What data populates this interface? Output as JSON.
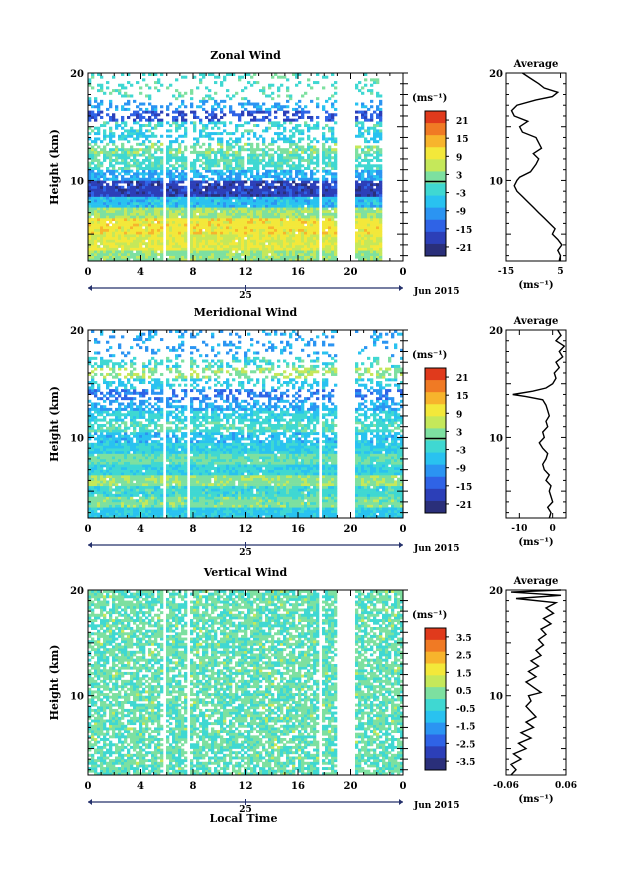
{
  "chart_data": [
    {
      "type": "heatmap",
      "title": "Zonal Wind",
      "ylabel": "Height (km)",
      "xlabel": "",
      "ylim": [
        2.5,
        20
      ],
      "yticks": [
        10,
        20
      ],
      "xlim": [
        0,
        24
      ],
      "xticks": [
        "0",
        "4",
        "8",
        "12",
        "16",
        "20",
        "0"
      ],
      "date_day": "25",
      "date_label": "Jun 2015",
      "colorbar": {
        "unit": "(ms⁻¹)",
        "ticks": [
          "21",
          "15",
          "9",
          "3",
          "-3",
          "-9",
          "-15",
          "-21"
        ],
        "min": -24,
        "max": 24,
        "zero_line": 0
      },
      "missing_time_bands": [
        [
          5.8,
          6.0
        ],
        [
          7.6,
          7.8
        ],
        [
          17.6,
          17.8
        ],
        [
          18.9,
          20.4
        ],
        [
          22.5,
          24
        ]
      ],
      "layers": [
        {
          "from": 2.5,
          "to": 3.5,
          "value": 3
        },
        {
          "from": 3.5,
          "to": 5.0,
          "value": 8
        },
        {
          "from": 5.0,
          "to": 6.5,
          "value": 10
        },
        {
          "from": 6.5,
          "to": 7.5,
          "value": 4
        },
        {
          "from": 7.5,
          "to": 8.5,
          "value": -6
        },
        {
          "from": 8.5,
          "to": 10.0,
          "value": -18
        },
        {
          "from": 10.0,
          "to": 11.0,
          "value": -8
        },
        {
          "from": 11.0,
          "to": 12.5,
          "value": -1
        },
        {
          "from": 12.5,
          "to": 13.5,
          "value": 2
        },
        {
          "from": 13.5,
          "to": 14.5,
          "value": -5
        },
        {
          "from": 14.5,
          "to": 15.5,
          "value": -2
        },
        {
          "from": 15.5,
          "to": 16.5,
          "value": -16
        },
        {
          "from": 16.5,
          "to": 17.5,
          "value": -9
        },
        {
          "from": 17.5,
          "to": 18.5,
          "value": -1
        }
      ],
      "average": {
        "title": "Average",
        "xlabel": "(ms⁻¹)",
        "xlim": [
          -15,
          7
        ],
        "xticks": [
          "-15",
          "5"
        ],
        "yticks": [
          10,
          20
        ],
        "ylim": [
          2.5,
          20
        ],
        "points": [
          [
            4.5,
            2.5
          ],
          [
            5,
            3
          ],
          [
            4,
            3.5
          ],
          [
            5.5,
            4
          ],
          [
            4,
            4.5
          ],
          [
            2,
            5
          ],
          [
            3,
            5.5
          ],
          [
            1,
            6
          ],
          [
            -1,
            6.5
          ],
          [
            -3,
            7
          ],
          [
            -5,
            7.5
          ],
          [
            -7,
            8
          ],
          [
            -9,
            8.5
          ],
          [
            -11,
            9
          ],
          [
            -12,
            9.5
          ],
          [
            -11,
            10
          ],
          [
            -10,
            10.3
          ],
          [
            -6,
            10.8
          ],
          [
            -4,
            11.5
          ],
          [
            -3,
            12
          ],
          [
            -5,
            12.5
          ],
          [
            -2,
            13
          ],
          [
            -3,
            13.5
          ],
          [
            -4,
            14
          ],
          [
            -9,
            14.5
          ],
          [
            -10,
            15
          ],
          [
            -7,
            15.5
          ],
          [
            -12,
            16
          ],
          [
            -13,
            16.5
          ],
          [
            -11,
            17
          ],
          [
            -4,
            17.5
          ],
          [
            2,
            17.8
          ],
          [
            4,
            18.2
          ],
          [
            -1,
            18.6
          ],
          [
            -3,
            19
          ],
          [
            -6,
            19.5
          ],
          [
            -9,
            20
          ]
        ]
      }
    },
    {
      "type": "heatmap",
      "title": "Meridional Wind",
      "ylabel": "Height (km)",
      "xlabel": "",
      "ylim": [
        2.5,
        20
      ],
      "yticks": [
        10,
        20
      ],
      "xlim": [
        0,
        24
      ],
      "xticks": [
        "0",
        "4",
        "8",
        "12",
        "16",
        "20",
        "0"
      ],
      "date_day": "25",
      "date_label": "Jun 2015",
      "colorbar": {
        "unit": "(ms⁻¹)",
        "ticks": [
          "21",
          "15",
          "9",
          "3",
          "-3",
          "-9",
          "-15",
          "-21"
        ],
        "min": -24,
        "max": 24,
        "zero_line": 0
      },
      "missing_time_bands": [
        [
          5.8,
          6.0
        ],
        [
          7.6,
          7.8
        ],
        [
          17.6,
          17.8
        ],
        [
          18.9,
          20.4
        ]
      ],
      "layers": [
        {
          "from": 2.5,
          "to": 3.5,
          "value": -5
        },
        {
          "from": 3.5,
          "to": 4.5,
          "value": 2
        },
        {
          "from": 4.5,
          "to": 5.5,
          "value": -2
        },
        {
          "from": 5.5,
          "to": 6.5,
          "value": 3
        },
        {
          "from": 6.5,
          "to": 7.5,
          "value": -3
        },
        {
          "from": 7.5,
          "to": 8.5,
          "value": 1
        },
        {
          "from": 8.5,
          "to": 9.5,
          "value": -4
        },
        {
          "from": 9.5,
          "to": 10.5,
          "value": -6
        },
        {
          "from": 10.5,
          "to": 11.5,
          "value": -1
        },
        {
          "from": 11.5,
          "to": 12.5,
          "value": -3
        },
        {
          "from": 12.5,
          "to": 13.5,
          "value": -8
        },
        {
          "from": 13.5,
          "to": 14.5,
          "value": -12
        },
        {
          "from": 14.5,
          "to": 15.5,
          "value": -5
        },
        {
          "from": 15.5,
          "to": 16.5,
          "value": 4
        },
        {
          "from": 16.5,
          "to": 17.5,
          "value": -2
        },
        {
          "from": 17.5,
          "to": 18.5,
          "value": -9
        }
      ],
      "average": {
        "title": "Average",
        "xlabel": "(ms⁻¹)",
        "xlim": [
          -14,
          4
        ],
        "xticks": [
          "-10",
          "0"
        ],
        "yticks": [
          10,
          20
        ],
        "ylim": [
          2.5,
          20
        ],
        "points": [
          [
            -1,
            2.5
          ],
          [
            -0.5,
            3
          ],
          [
            -1.5,
            3.5
          ],
          [
            0,
            4
          ],
          [
            -0.5,
            4.5
          ],
          [
            -1,
            5
          ],
          [
            -0.5,
            5.5
          ],
          [
            -2,
            6
          ],
          [
            -1,
            6.5
          ],
          [
            -2.5,
            7
          ],
          [
            -3,
            7.5
          ],
          [
            -2,
            8
          ],
          [
            -1.5,
            8.5
          ],
          [
            -3,
            9
          ],
          [
            -4,
            9.5
          ],
          [
            -2.5,
            10
          ],
          [
            -3,
            10.5
          ],
          [
            -1.5,
            11
          ],
          [
            -2,
            11.5
          ],
          [
            -1,
            12
          ],
          [
            -1.5,
            12.5
          ],
          [
            -2,
            13
          ],
          [
            -3,
            13.5
          ],
          [
            -8,
            13.8
          ],
          [
            -12,
            14
          ],
          [
            -6,
            14.3
          ],
          [
            -2,
            14.6
          ],
          [
            0,
            15
          ],
          [
            1,
            15.5
          ],
          [
            0.5,
            16
          ],
          [
            2,
            16.5
          ],
          [
            1,
            17
          ],
          [
            3,
            17.5
          ],
          [
            2,
            18
          ],
          [
            3.5,
            18.5
          ],
          [
            1,
            19
          ],
          [
            2.5,
            19.5
          ],
          [
            1.5,
            20
          ]
        ]
      }
    },
    {
      "type": "heatmap",
      "title": "Vertical Wind",
      "ylabel": "Height (km)",
      "xlabel": "Local Time",
      "ylim": [
        2.5,
        20
      ],
      "yticks": [
        10,
        20
      ],
      "xlim": [
        0,
        24
      ],
      "xticks": [
        "0",
        "4",
        "8",
        "12",
        "16",
        "20",
        "0"
      ],
      "date_day": "25",
      "date_label": "Jun 2015",
      "colorbar": {
        "unit": "(ms⁻¹)",
        "ticks": [
          "3.5",
          "2.5",
          "1.5",
          "0.5",
          "-0.5",
          "-1.5",
          "-2.5",
          "-3.5"
        ],
        "min": -4,
        "max": 4,
        "zero_line": null
      },
      "missing_time_bands": [
        [
          5.8,
          6.0
        ],
        [
          7.6,
          7.8
        ],
        [
          17.6,
          17.8
        ],
        [
          18.9,
          20.4
        ]
      ],
      "layers": [
        {
          "from": 2.5,
          "to": 20,
          "value": 0.1
        }
      ],
      "average": {
        "title": "Average",
        "xlabel": "(ms⁻¹)",
        "xlim": [
          -0.06,
          0.06
        ],
        "xticks": [
          "-0.06",
          "0.06"
        ],
        "yticks": [
          10,
          20
        ],
        "ylim": [
          2.5,
          20
        ],
        "points": [
          [
            -0.05,
            2.5
          ],
          [
            -0.04,
            3
          ],
          [
            -0.05,
            3.5
          ],
          [
            -0.03,
            4
          ],
          [
            -0.045,
            4.5
          ],
          [
            -0.02,
            5
          ],
          [
            -0.035,
            5.5
          ],
          [
            -0.01,
            6
          ],
          [
            -0.03,
            6.5
          ],
          [
            -0.005,
            7
          ],
          [
            -0.02,
            7.5
          ],
          [
            0,
            8
          ],
          [
            -0.01,
            8.5
          ],
          [
            -0.02,
            9
          ],
          [
            -0.01,
            9.5
          ],
          [
            -0.015,
            10
          ],
          [
            0.01,
            10.3
          ],
          [
            -0.005,
            10.8
          ],
          [
            -0.02,
            11.3
          ],
          [
            0,
            11.8
          ],
          [
            -0.015,
            12.3
          ],
          [
            0.005,
            12.8
          ],
          [
            -0.01,
            13.3
          ],
          [
            0.01,
            13.8
          ],
          [
            0,
            14.3
          ],
          [
            0.015,
            14.8
          ],
          [
            0.005,
            15.3
          ],
          [
            0.02,
            15.8
          ],
          [
            0.01,
            16.3
          ],
          [
            0.03,
            16.8
          ],
          [
            0.015,
            17.3
          ],
          [
            0.035,
            17.8
          ],
          [
            0.02,
            18.3
          ],
          [
            0.04,
            18.8
          ],
          [
            -0.04,
            19.2
          ],
          [
            0.05,
            19.5
          ],
          [
            -0.05,
            19.8
          ],
          [
            0.05,
            20
          ]
        ]
      }
    }
  ]
}
